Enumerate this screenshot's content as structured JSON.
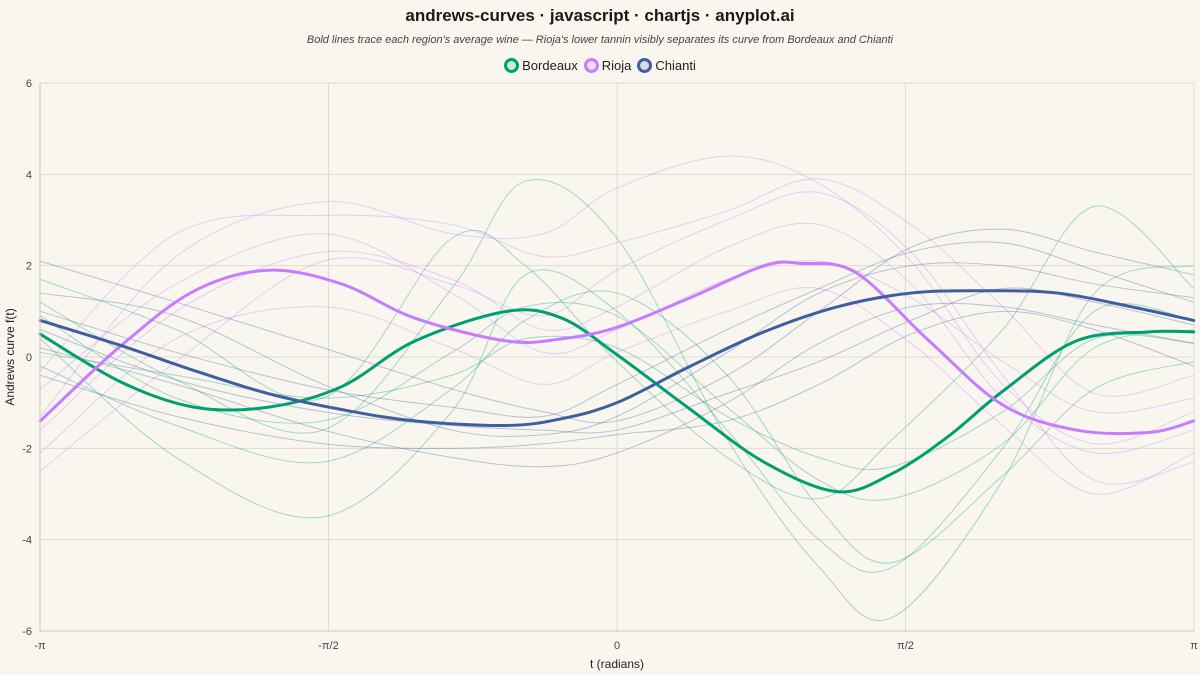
{
  "title": "andrews-curves · javascript · chartjs · anyplot.ai",
  "subtitle": "Bold lines trace each region's average wine — Rioja's lower tannin visibly separates its curve from Bordeaux and Chianti",
  "legend": [
    {
      "label": "Bordeaux",
      "color": "#009E73"
    },
    {
      "label": "Rioja",
      "color": "#C77CFF"
    },
    {
      "label": "Chianti",
      "color": "#3E5F9F"
    }
  ],
  "chart_data": {
    "type": "line",
    "title": "andrews-curves · javascript · chartjs · anyplot.ai",
    "xlabel": "t (radians)",
    "ylabel": "Andrews curve f(t)",
    "xlim": [
      -3.14159,
      3.14159
    ],
    "ylim": [
      -6,
      6
    ],
    "x_ticks": [
      {
        "value": -3.14159,
        "label": "-π"
      },
      {
        "value": -1.5708,
        "label": "-π/2"
      },
      {
        "value": 0,
        "label": "0"
      },
      {
        "value": 1.5708,
        "label": "π/2"
      },
      {
        "value": 3.14159,
        "label": "π"
      }
    ],
    "y_ticks": [
      -6,
      -4,
      -2,
      0,
      2,
      4,
      6
    ],
    "grid": true,
    "legend_position": "top-center",
    "series": [
      {
        "name": "Bordeaux",
        "color": "#009E73",
        "role": "mean",
        "x": [
          -3.14,
          -2.7,
          -2.3,
          -1.9,
          -1.5,
          -1.1,
          -0.6,
          -0.3,
          0,
          0.4,
          0.8,
          1.2,
          1.5,
          1.8,
          2.1,
          2.5,
          2.9,
          3.14
        ],
        "y": [
          0.5,
          -0.55,
          -1.1,
          -1.1,
          -0.65,
          0.35,
          1.0,
          0.85,
          0.05,
          -1.15,
          -2.3,
          -2.95,
          -2.55,
          -1.75,
          -0.75,
          0.35,
          0.55,
          0.55
        ]
      },
      {
        "name": "Rioja",
        "color": "#C77CFF",
        "role": "mean",
        "x": [
          -3.14,
          -2.7,
          -2.3,
          -1.9,
          -1.5,
          -1.1,
          -0.6,
          -0.3,
          0,
          0.4,
          0.8,
          1.0,
          1.3,
          1.7,
          2.1,
          2.5,
          2.9,
          3.14
        ],
        "y": [
          -1.4,
          0.25,
          1.45,
          1.9,
          1.6,
          0.85,
          0.35,
          0.4,
          0.65,
          1.3,
          2.0,
          2.05,
          1.85,
          0.35,
          -1.05,
          -1.6,
          -1.65,
          -1.4
        ]
      },
      {
        "name": "Chianti",
        "color": "#3E5F9F",
        "role": "mean",
        "x": [
          -3.14,
          -2.7,
          -2.3,
          -1.9,
          -1.5,
          -1.1,
          -0.6,
          -0.3,
          0,
          0.4,
          0.8,
          1.2,
          1.6,
          2.0,
          2.4,
          2.8,
          3.14
        ],
        "y": [
          0.8,
          0.25,
          -0.3,
          -0.8,
          -1.15,
          -1.4,
          -1.5,
          -1.35,
          -1.0,
          -0.2,
          0.55,
          1.1,
          1.4,
          1.45,
          1.4,
          1.1,
          0.8
        ]
      }
    ],
    "background_curves": {
      "description": "faint per-sample curves for each region",
      "Bordeaux": [
        {
          "x": [
            -3.14,
            -2.4,
            -1.6,
            -0.9,
            -0.5,
            0,
            0.6,
            1.1,
            1.5,
            2.1,
            2.6,
            3.14
          ],
          "y": [
            1.2,
            -0.5,
            -1.6,
            1.5,
            3.85,
            2.6,
            -1.8,
            -4.6,
            -5.7,
            -2.7,
            1.4,
            2.0
          ]
        },
        {
          "x": [
            -3.14,
            -2.4,
            -1.6,
            -0.9,
            -0.5,
            0,
            0.6,
            1.1,
            1.5,
            2.1,
            2.6,
            3.14
          ],
          "y": [
            0.4,
            -2.2,
            -3.5,
            -1.2,
            1.8,
            1.0,
            -1.6,
            -4.0,
            -4.6,
            -2.0,
            1.0,
            0.8
          ]
        },
        {
          "x": [
            -3.14,
            -2.4,
            -1.6,
            -0.9,
            -0.5,
            0,
            0.6,
            1.1,
            1.5,
            2.1,
            2.6,
            3.14
          ],
          "y": [
            1.7,
            0.6,
            -0.9,
            2.6,
            2.0,
            -0.1,
            -2.2,
            -3.1,
            -1.8,
            0.6,
            3.3,
            1.5
          ]
        },
        {
          "x": [
            -3.14,
            -2.4,
            -1.6,
            -0.9,
            -0.5,
            0,
            0.6,
            1.1,
            1.5,
            2.1,
            2.6,
            3.14
          ],
          "y": [
            0.9,
            -0.9,
            -1.4,
            0.1,
            1.1,
            0.9,
            -1.1,
            -2.7,
            -3.1,
            -1.9,
            0.2,
            0.6
          ]
        },
        {
          "x": [
            -3.14,
            -2.4,
            -1.6,
            -0.9,
            -0.5,
            0,
            0.6,
            1.1,
            1.5,
            2.1,
            2.6,
            3.14
          ],
          "y": [
            -0.2,
            -1.5,
            -2.3,
            -0.7,
            0.8,
            1.4,
            -0.4,
            -3.3,
            -4.5,
            -2.6,
            -0.7,
            -0.1
          ]
        },
        {
          "x": [
            -3.14,
            -2.4,
            -1.6,
            -0.9,
            -0.5,
            0,
            0.6,
            1.1,
            1.5,
            2.1,
            2.6,
            3.14
          ],
          "y": [
            0.1,
            -0.4,
            -0.9,
            -0.4,
            0.4,
            0.2,
            -1.3,
            -2.2,
            -2.4,
            -1.2,
            0.4,
            0.3
          ]
        }
      ],
      "Rioja": [
        {
          "x": [
            -3.14,
            -2.4,
            -1.6,
            -0.9,
            -0.4,
            0,
            0.6,
            1.1,
            1.6,
            2.1,
            2.6,
            3.14
          ],
          "y": [
            -1.3,
            2.2,
            3.4,
            2.7,
            2.7,
            3.7,
            4.4,
            3.8,
            2.1,
            -0.6,
            -1.9,
            -1.2
          ]
        },
        {
          "x": [
            -3.14,
            -2.4,
            -1.6,
            -0.9,
            -0.4,
            0,
            0.6,
            1.1,
            1.6,
            2.1,
            2.6,
            3.14
          ],
          "y": [
            -2.5,
            -0.1,
            2.1,
            1.6,
            0.9,
            1.9,
            3.0,
            3.6,
            2.3,
            -0.4,
            -2.7,
            -2.3
          ]
        },
        {
          "x": [
            -3.14,
            -2.4,
            -1.6,
            -0.9,
            -0.4,
            0,
            0.6,
            1.1,
            1.6,
            2.1,
            2.6,
            3.14
          ],
          "y": [
            -0.7,
            1.6,
            2.7,
            1.4,
            0.1,
            0.6,
            1.7,
            2.1,
            1.3,
            -0.1,
            -1.2,
            -0.9
          ]
        },
        {
          "x": [
            -3.14,
            -2.4,
            -1.6,
            -0.9,
            -0.4,
            0,
            0.6,
            1.1,
            1.6,
            2.1,
            2.6,
            3.14
          ],
          "y": [
            -2.1,
            0.4,
            1.1,
            0.2,
            -0.6,
            0.1,
            1.0,
            1.5,
            0.3,
            -1.5,
            -3.0,
            -2.1
          ]
        },
        {
          "x": [
            -3.14,
            -2.4,
            -1.6,
            -0.9,
            -0.4,
            0,
            0.6,
            1.1,
            1.6,
            2.1,
            2.6,
            3.14
          ],
          "y": [
            -0.3,
            2.7,
            3.1,
            2.9,
            2.2,
            2.5,
            3.2,
            3.9,
            2.9,
            1.1,
            -0.8,
            -0.4
          ]
        },
        {
          "x": [
            -3.14,
            -2.4,
            -1.6,
            -0.9,
            -0.4,
            0,
            0.6,
            1.1,
            1.6,
            2.1,
            2.6,
            3.14
          ],
          "y": [
            -1.6,
            1.0,
            2.3,
            1.7,
            0.6,
            1.1,
            2.4,
            2.9,
            1.6,
            -0.9,
            -2.1,
            -1.6
          ]
        }
      ],
      "Chianti": [
        {
          "x": [
            -3.14,
            -2.4,
            -1.6,
            -0.9,
            -0.4,
            0,
            0.6,
            1.1,
            1.6,
            2.1,
            2.6,
            3.14
          ],
          "y": [
            2.1,
            1.2,
            0.2,
            -0.7,
            -1.2,
            -1.4,
            -0.4,
            1.0,
            2.4,
            2.8,
            2.3,
            1.8
          ]
        },
        {
          "x": [
            -3.14,
            -2.4,
            -1.6,
            -0.9,
            -0.4,
            0,
            0.6,
            1.1,
            1.6,
            2.1,
            2.6,
            3.14
          ],
          "y": [
            0.2,
            -0.6,
            -1.6,
            -2.2,
            -2.4,
            -2.1,
            -1.0,
            0.3,
            1.1,
            1.1,
            0.7,
            0.3
          ]
        },
        {
          "x": [
            -3.14,
            -2.4,
            -1.6,
            -0.9,
            -0.4,
            0,
            0.6,
            1.1,
            1.6,
            2.1,
            2.6,
            3.14
          ],
          "y": [
            1.4,
            0.9,
            -0.6,
            -1.6,
            -1.7,
            -1.3,
            0.1,
            1.4,
            2.0,
            2.0,
            1.6,
            1.3
          ]
        },
        {
          "x": [
            -3.14,
            -2.4,
            -1.6,
            -0.9,
            -0.4,
            0,
            0.6,
            1.1,
            1.6,
            2.1,
            2.6,
            3.14
          ],
          "y": [
            -0.4,
            -1.3,
            -1.9,
            -2.0,
            -1.9,
            -1.7,
            -1.4,
            -0.6,
            0.5,
            1.0,
            0.6,
            -0.2
          ]
        },
        {
          "x": [
            -3.14,
            -2.4,
            -1.6,
            -0.9,
            -0.4,
            0,
            0.6,
            1.1,
            1.6,
            2.1,
            2.6,
            3.14
          ],
          "y": [
            1.0,
            0.1,
            -0.7,
            -1.1,
            -1.3,
            -0.6,
            0.6,
            1.5,
            2.3,
            2.5,
            1.9,
            1.2
          ]
        },
        {
          "x": [
            -3.14,
            -2.4,
            -1.6,
            -0.9,
            -0.4,
            0,
            0.6,
            1.1,
            1.6,
            2.1,
            2.6,
            3.14
          ],
          "y": [
            0.6,
            -0.5,
            -1.2,
            -1.5,
            -1.6,
            -1.6,
            -0.8,
            -0.1,
            0.8,
            1.5,
            1.2,
            0.7
          ]
        }
      ]
    }
  }
}
